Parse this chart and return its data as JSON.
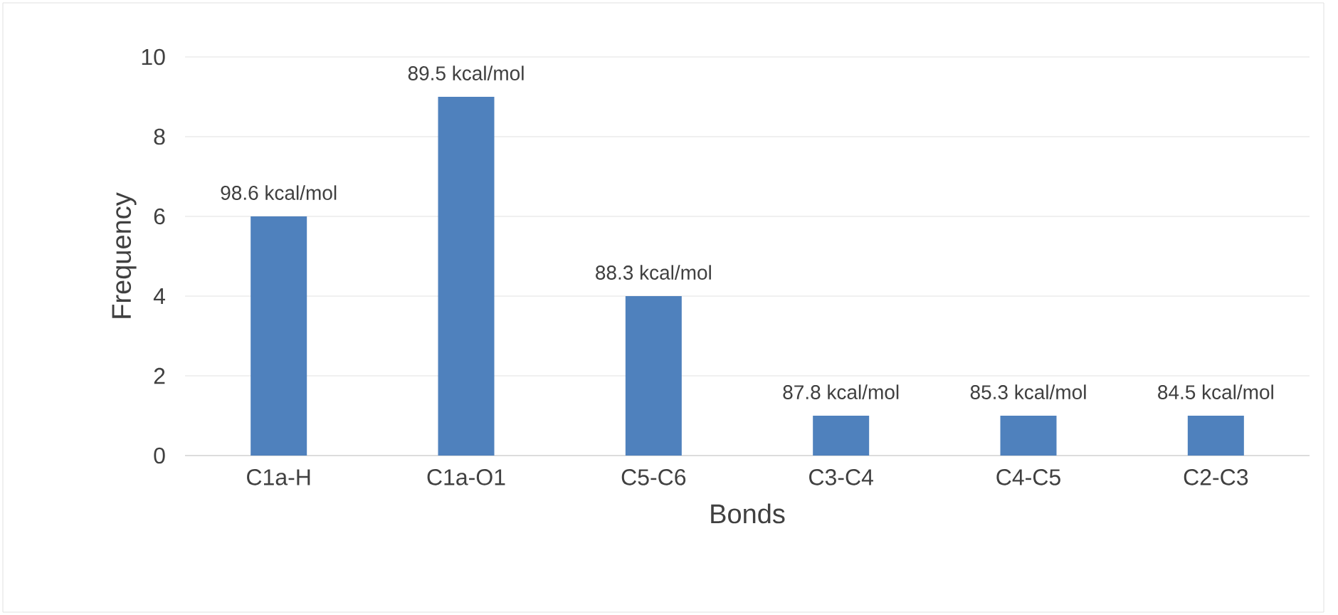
{
  "chart_data": {
    "type": "bar",
    "xlabel": "Bonds",
    "ylabel": "Frequency",
    "categories": [
      "C1a-H",
      "C1a-O1",
      "C5-C6",
      "C3-C4",
      "C4-C5",
      "C2-C3"
    ],
    "values": [
      6,
      9,
      4,
      1,
      1,
      1
    ],
    "annotations": [
      {
        "text": "98.6 kcal/mol",
        "x": "C1a-H",
        "y": 6
      },
      {
        "text": "89.5 kcal/mol",
        "x": "C1a-O1",
        "y": 9
      },
      {
        "text": "88.3 kcal/mol",
        "x": "C5-C6",
        "y": 4
      },
      {
        "text": "87.8 kcal/mol",
        "x": "C3-C4",
        "y": 1
      },
      {
        "text": "85.3 kcal/mol",
        "x": "C4-C5",
        "y": 1
      },
      {
        "text": "84.5 kcal/mol",
        "x": "C2-C3",
        "y": 1
      }
    ],
    "color": "#4f81bd",
    "ylim": [
      0,
      10
    ],
    "yticks": [
      0,
      2,
      4,
      6,
      8,
      10
    ],
    "grid": "y"
  }
}
